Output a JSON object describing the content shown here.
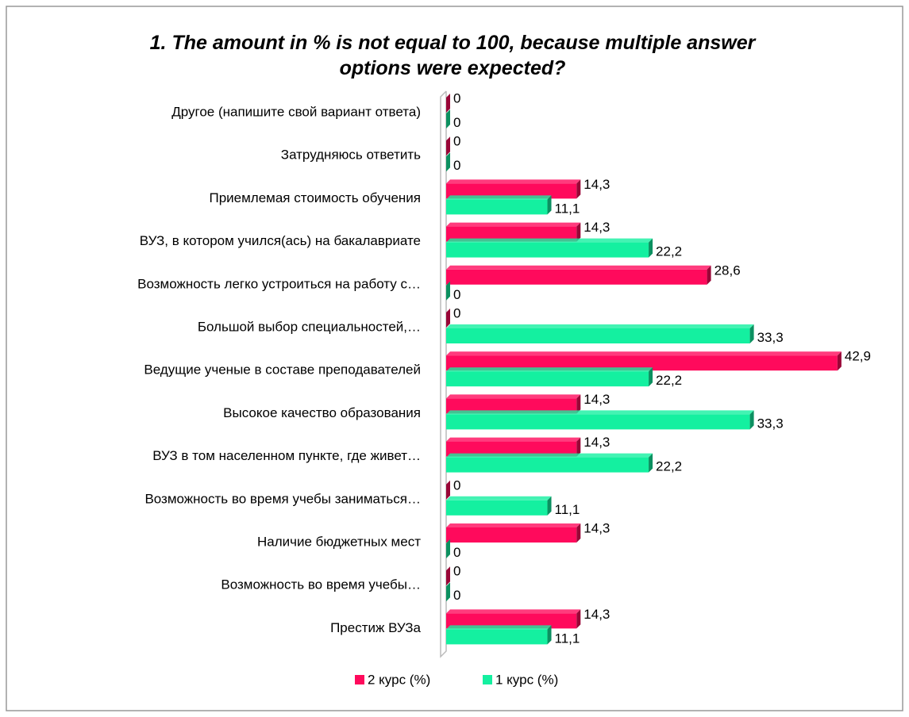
{
  "chart_data": {
    "type": "bar3d_horizontal",
    "title": "1. The amount in % is not equal to 100, because multiple answer options were expected?",
    "categories": [
      "Другое (напишите свой вариант ответа)",
      "Затрудняюсь ответить",
      "Приемлемая стоимость обучения",
      "ВУЗ, в котором учился(ась) на бакалавриате",
      "Возможность легко устроиться на работу с…",
      "Большой выбор специальностей,…",
      "Ведущие ученые в составе преподавателей",
      "Высокое качество образования",
      "ВУЗ в том населенном пункте, где живет…",
      "Возможность во время учебы заниматься…",
      "Наличие бюджетных мест",
      "Возможность во время учебы…",
      "Престиж ВУЗа"
    ],
    "series": [
      {
        "name": "2 курс (%)",
        "color": "#ff0a5c",
        "values": [
          0,
          0,
          14.3,
          14.3,
          28.6,
          0,
          42.9,
          14.3,
          14.3,
          0,
          14.3,
          0,
          14.3
        ],
        "value_labels": [
          "0",
          "0",
          "14,3",
          "14,3",
          "28,6",
          "0",
          "42,9",
          "14,3",
          "14,3",
          "0",
          "14,3",
          "0",
          "14,3"
        ]
      },
      {
        "name": "1 курс (%)",
        "color": "#14f0a0",
        "values": [
          0,
          0,
          11.1,
          22.2,
          0,
          33.3,
          22.2,
          33.3,
          22.2,
          11.1,
          0,
          0,
          11.1
        ],
        "value_labels": [
          "0",
          "0",
          "11,1",
          "22,2",
          "0",
          "33,3",
          "22,2",
          "33,3",
          "22,2",
          "11,1",
          "0",
          "0",
          "11,1"
        ]
      }
    ],
    "xlim": [
      0,
      45
    ],
    "legend": "bottom"
  }
}
